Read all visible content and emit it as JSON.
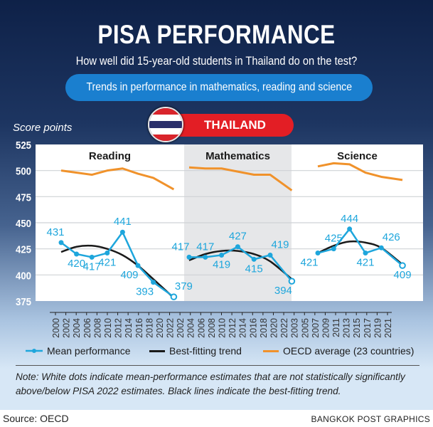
{
  "header": {
    "title": "PISA PERFORMANCE",
    "subtitle": "How well did 15-year-old students in Thailand do on the test?",
    "pill": "Trends in performance in mathematics, reading and science",
    "country": "THAILAND"
  },
  "colors": {
    "mean": "#1ea6dc",
    "trend": "#1a1a1a",
    "oecd": "#f0922b",
    "panel_shaded": "#e6e7e9",
    "background_top": "#0e2148",
    "background_bottom": "#d7e7f6",
    "pill": "#1a7fcf",
    "country_badge": "#e31e25"
  },
  "chart_data": {
    "type": "line",
    "ylabel": "Score points",
    "ylim": [
      375,
      525
    ],
    "yticks": [
      375,
      400,
      425,
      450,
      475,
      500,
      525
    ],
    "grid": true,
    "legend_placement": "bottom",
    "legend": [
      "Mean performance",
      "Best-fitting trend",
      "OECD average (23 countries)"
    ],
    "xtick_labels": [
      "2000",
      "2002",
      "2004",
      "2006",
      "2008",
      "2010",
      "2012",
      "2014",
      "2016",
      "2018",
      "2020",
      "2022",
      "2002",
      "2004",
      "2006",
      "2008",
      "2010",
      "2012",
      "2014",
      "2016",
      "2018",
      "2020",
      "2022",
      "2003",
      "2005",
      "2007",
      "2009",
      "2011",
      "2013",
      "2015",
      "2017",
      "2019",
      "2021"
    ],
    "panels": [
      {
        "title": "Reading",
        "shaded": false,
        "mean": {
          "x": [
            2000,
            2003,
            2006,
            2009,
            2012,
            2015,
            2018,
            2022
          ],
          "y": [
            431,
            420,
            417,
            421,
            441,
            409,
            393,
            379
          ],
          "not_significant": [
            false,
            false,
            false,
            false,
            false,
            false,
            false,
            true
          ]
        },
        "trend": {
          "x": [
            2000,
            2003,
            2006,
            2009,
            2012,
            2015,
            2018,
            2022
          ],
          "y": [
            422,
            427,
            428,
            425,
            419,
            409,
            396,
            378
          ]
        },
        "oecd": {
          "x": [
            2000,
            2006,
            2009,
            2012,
            2015,
            2018,
            2022
          ],
          "y": [
            500,
            496,
            500,
            502,
            497,
            493,
            482
          ]
        }
      },
      {
        "title": "Mathematics",
        "shaded": true,
        "mean": {
          "x": [
            2003,
            2006,
            2009,
            2012,
            2015,
            2018,
            2022
          ],
          "y": [
            417,
            417,
            419,
            427,
            415,
            419,
            394
          ],
          "not_significant": [
            false,
            false,
            false,
            false,
            false,
            false,
            true
          ]
        },
        "trend": {
          "x": [
            2003,
            2006,
            2009,
            2012,
            2015,
            2018,
            2022
          ],
          "y": [
            414,
            420,
            423,
            423,
            420,
            413,
            396
          ]
        },
        "oecd": {
          "x": [
            2003,
            2006,
            2009,
            2012,
            2015,
            2018,
            2022
          ],
          "y": [
            503,
            502,
            502,
            499,
            496,
            496,
            481
          ]
        }
      },
      {
        "title": "Science",
        "shaded": false,
        "mean": {
          "x": [
            2006,
            2009,
            2012,
            2015,
            2018,
            2022
          ],
          "y": [
            421,
            425,
            444,
            421,
            426,
            409
          ],
          "not_significant": [
            false,
            false,
            false,
            false,
            false,
            true
          ]
        },
        "trend": {
          "x": [
            2006,
            2009,
            2012,
            2015,
            2018,
            2022
          ],
          "y": [
            421,
            428,
            432,
            431,
            426,
            410
          ]
        },
        "oecd": {
          "x": [
            2006,
            2009,
            2012,
            2015,
            2018,
            2022
          ],
          "y": [
            504,
            507,
            506,
            498,
            494,
            491
          ]
        }
      }
    ]
  },
  "note": "Note: White dots indicate mean-performance estimates that are not statistically significantly above/below PISA 2022 estimates. Black lines indicate the best-fitting trend.",
  "source": "Source: OECD",
  "credit": "BANGKOK POST GRAPHICS"
}
